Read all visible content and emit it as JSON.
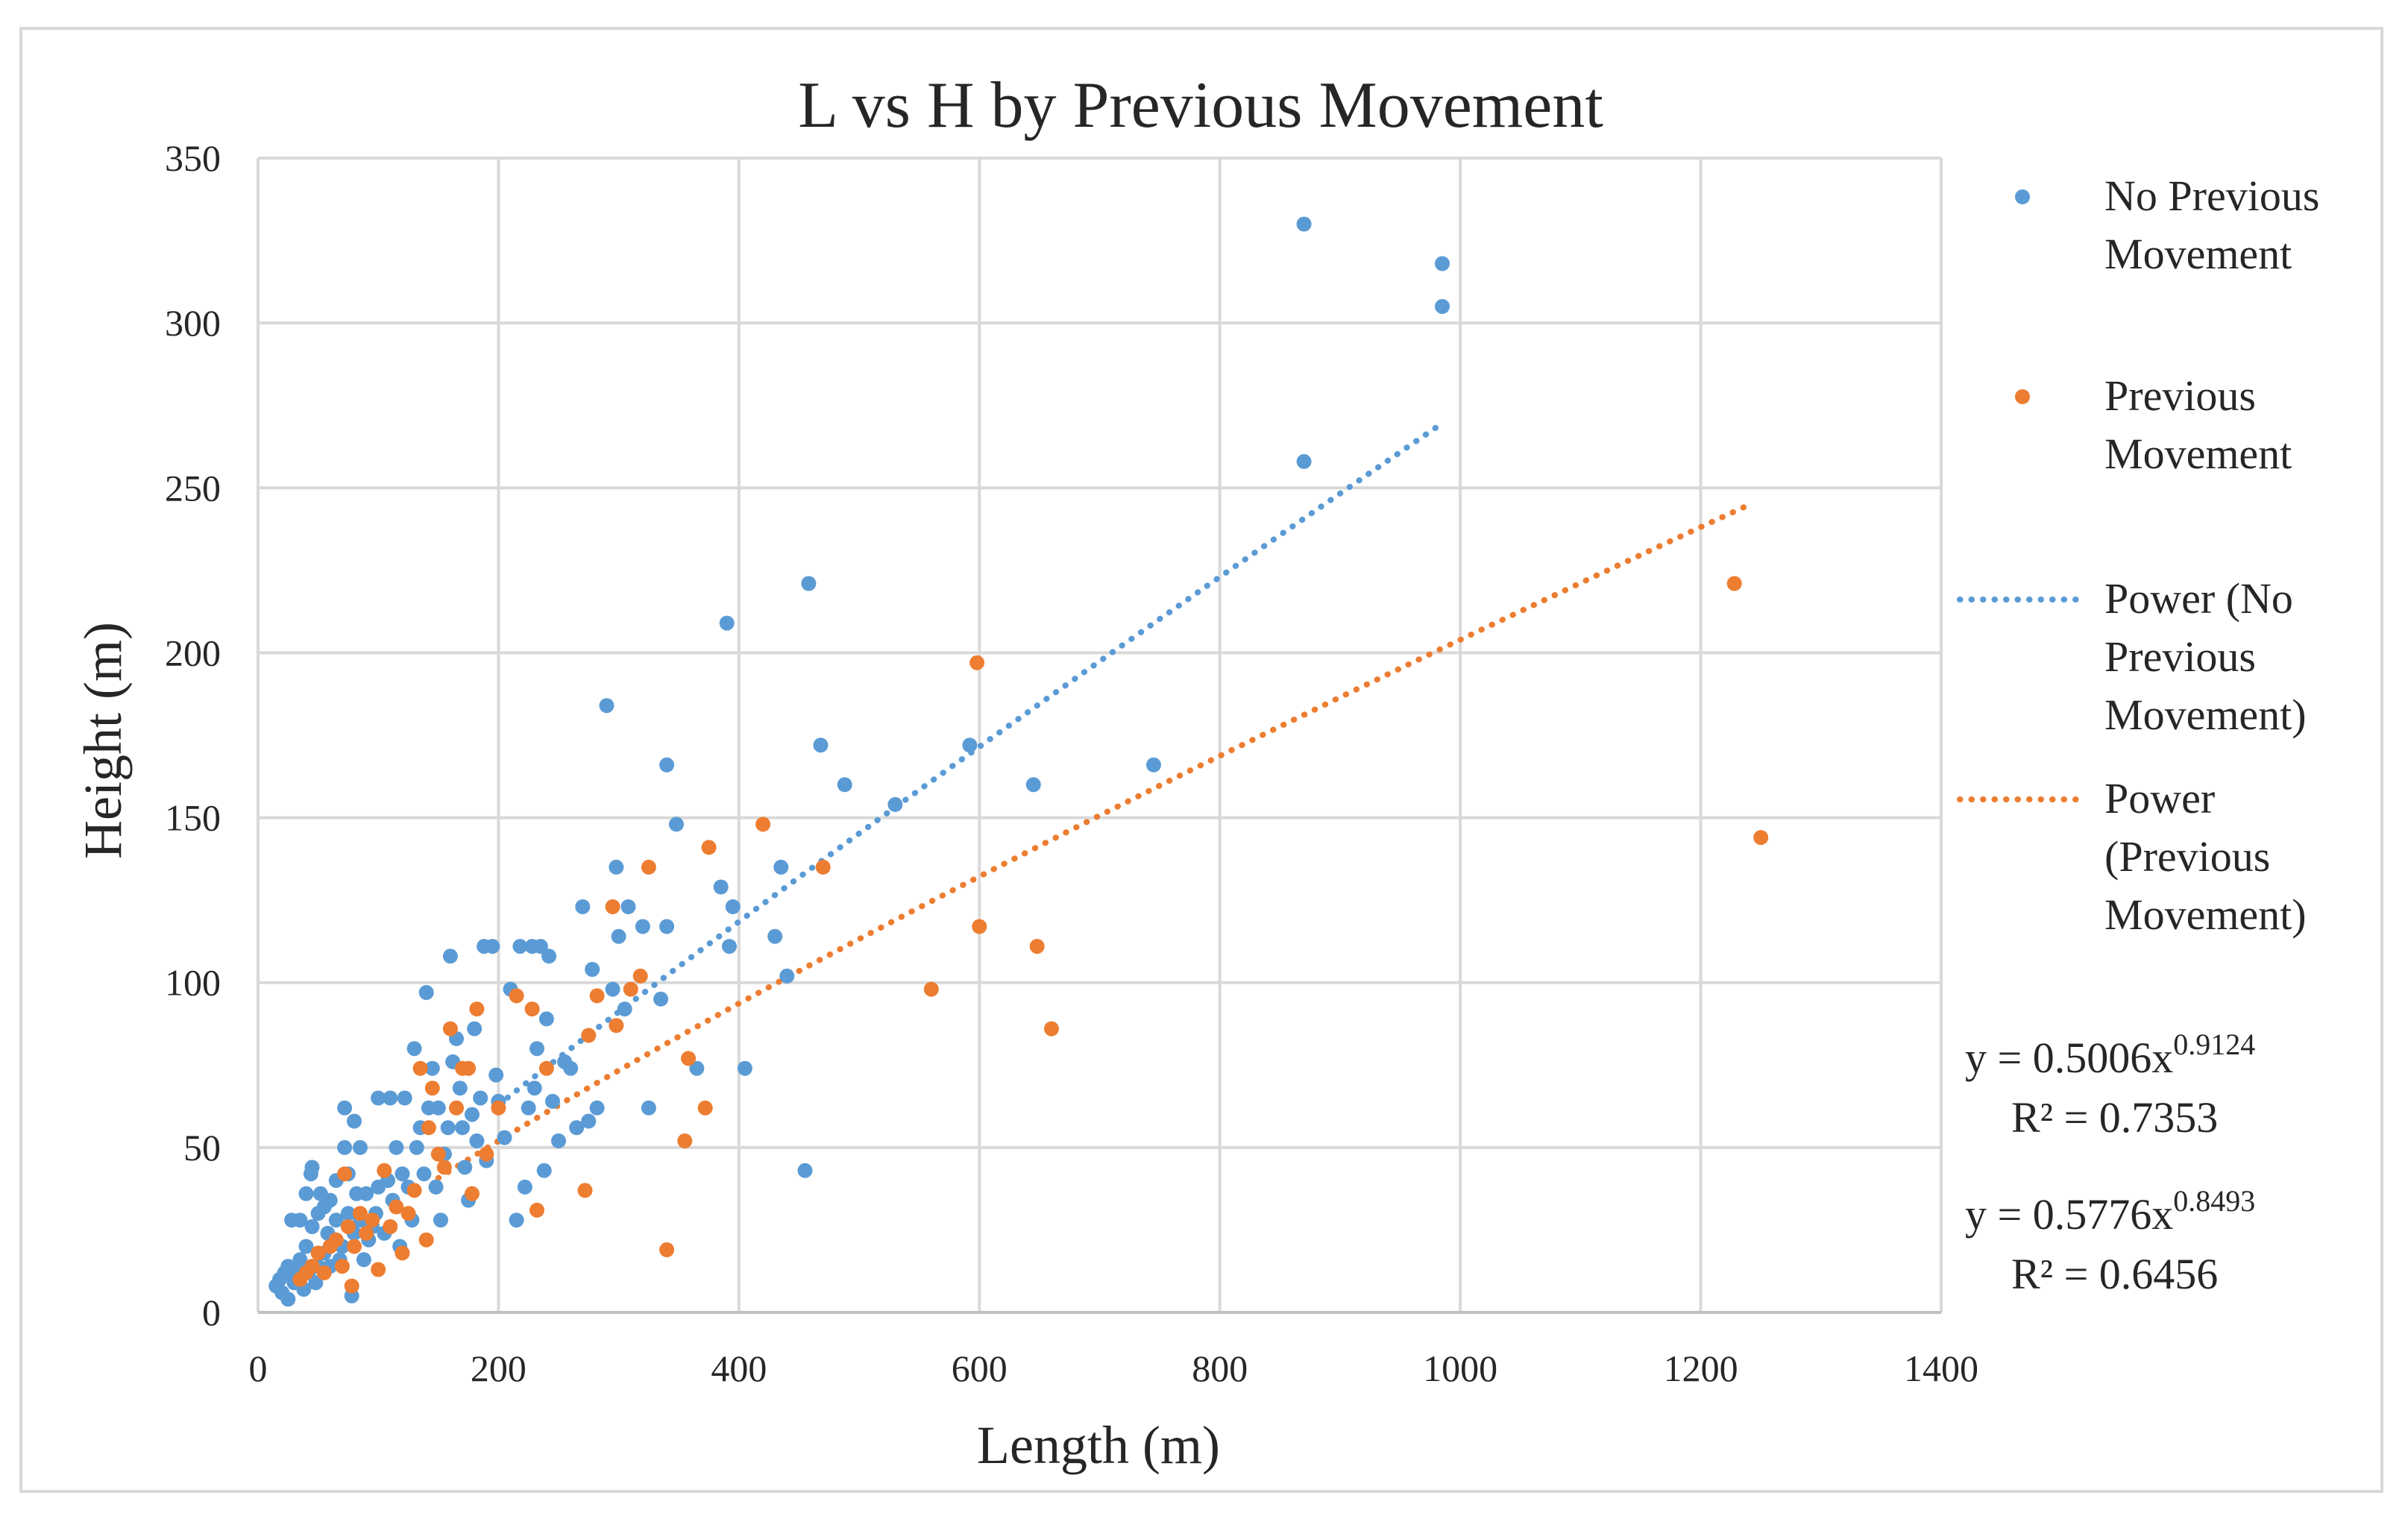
{
  "chart_data": {
    "type": "scatter",
    "title": "L vs H by Previous Movement",
    "xlabel": "Length (m)",
    "ylabel": "Height (m)",
    "xlim": [
      0,
      1400
    ],
    "ylim": [
      0,
      350
    ],
    "xticks": [
      0,
      200,
      400,
      600,
      800,
      1000,
      1200,
      1400
    ],
    "yticks": [
      0,
      50,
      100,
      150,
      200,
      250,
      300,
      350
    ],
    "grid": true,
    "legend_position": "right",
    "series": [
      {
        "name": "No Previous Movement",
        "color": "#5b9bd5",
        "points": [
          [
            15,
            8
          ],
          [
            18,
            10
          ],
          [
            20,
            6
          ],
          [
            22,
            12
          ],
          [
            25,
            14
          ],
          [
            25,
            4
          ],
          [
            28,
            28
          ],
          [
            30,
            9
          ],
          [
            32,
            12
          ],
          [
            35,
            28
          ],
          [
            35,
            16
          ],
          [
            38,
            7
          ],
          [
            40,
            20
          ],
          [
            40,
            36
          ],
          [
            42,
            12
          ],
          [
            44,
            42
          ],
          [
            45,
            44
          ],
          [
            45,
            26
          ],
          [
            48,
            9
          ],
          [
            50,
            30
          ],
          [
            50,
            14
          ],
          [
            52,
            36
          ],
          [
            55,
            18
          ],
          [
            55,
            32
          ],
          [
            58,
            24
          ],
          [
            60,
            34
          ],
          [
            60,
            14
          ],
          [
            62,
            22
          ],
          [
            65,
            40
          ],
          [
            65,
            28
          ],
          [
            68,
            16
          ],
          [
            70,
            20
          ],
          [
            72,
            62
          ],
          [
            72,
            50
          ],
          [
            75,
            30
          ],
          [
            75,
            42
          ],
          [
            78,
            5
          ],
          [
            80,
            24
          ],
          [
            80,
            58
          ],
          [
            82,
            36
          ],
          [
            85,
            50
          ],
          [
            85,
            28
          ],
          [
            88,
            16
          ],
          [
            90,
            36
          ],
          [
            92,
            22
          ],
          [
            95,
            26
          ],
          [
            98,
            30
          ],
          [
            100,
            65
          ],
          [
            100,
            38
          ],
          [
            105,
            24
          ],
          [
            108,
            40
          ],
          [
            110,
            65
          ],
          [
            112,
            34
          ],
          [
            115,
            50
          ],
          [
            118,
            20
          ],
          [
            120,
            42
          ],
          [
            122,
            65
          ],
          [
            125,
            38
          ],
          [
            128,
            28
          ],
          [
            130,
            80
          ],
          [
            132,
            50
          ],
          [
            135,
            56
          ],
          [
            138,
            42
          ],
          [
            140,
            97
          ],
          [
            142,
            62
          ],
          [
            145,
            74
          ],
          [
            148,
            38
          ],
          [
            150,
            62
          ],
          [
            152,
            28
          ],
          [
            155,
            48
          ],
          [
            158,
            56
          ],
          [
            160,
            108
          ],
          [
            162,
            76
          ],
          [
            165,
            83
          ],
          [
            168,
            68
          ],
          [
            170,
            56
          ],
          [
            172,
            44
          ],
          [
            175,
            34
          ],
          [
            178,
            60
          ],
          [
            180,
            86
          ],
          [
            182,
            52
          ],
          [
            185,
            65
          ],
          [
            188,
            111
          ],
          [
            190,
            46
          ],
          [
            195,
            111
          ],
          [
            198,
            72
          ],
          [
            200,
            64
          ],
          [
            205,
            53
          ],
          [
            210,
            98
          ],
          [
            215,
            28
          ],
          [
            218,
            111
          ],
          [
            222,
            38
          ],
          [
            225,
            62
          ],
          [
            228,
            111
          ],
          [
            230,
            68
          ],
          [
            232,
            80
          ],
          [
            235,
            111
          ],
          [
            238,
            43
          ],
          [
            240,
            89
          ],
          [
            242,
            108
          ],
          [
            245,
            64
          ],
          [
            250,
            52
          ],
          [
            255,
            76
          ],
          [
            260,
            74
          ],
          [
            265,
            56
          ],
          [
            270,
            123
          ],
          [
            275,
            58
          ],
          [
            278,
            104
          ],
          [
            282,
            62
          ],
          [
            290,
            184
          ],
          [
            295,
            98
          ],
          [
            298,
            135
          ],
          [
            300,
            114
          ],
          [
            305,
            92
          ],
          [
            308,
            123
          ],
          [
            320,
            117
          ],
          [
            325,
            62
          ],
          [
            335,
            95
          ],
          [
            340,
            166
          ],
          [
            340,
            117
          ],
          [
            348,
            148
          ],
          [
            365,
            74
          ],
          [
            385,
            129
          ],
          [
            390,
            209
          ],
          [
            392,
            111
          ],
          [
            395,
            123
          ],
          [
            430,
            114
          ],
          [
            435,
            135
          ],
          [
            440,
            102
          ],
          [
            405,
            74
          ],
          [
            455,
            43
          ],
          [
            458,
            221
          ],
          [
            468,
            172
          ],
          [
            488,
            160
          ],
          [
            530,
            154
          ],
          [
            592,
            172
          ],
          [
            645,
            160
          ],
          [
            745,
            166
          ],
          [
            870,
            258
          ],
          [
            870,
            330
          ],
          [
            985,
            318
          ],
          [
            985,
            305
          ]
        ]
      },
      {
        "name": "Previous Movement",
        "color": "#ed7d31",
        "points": [
          [
            35,
            10
          ],
          [
            40,
            12
          ],
          [
            45,
            14
          ],
          [
            50,
            18
          ],
          [
            55,
            12
          ],
          [
            60,
            20
          ],
          [
            65,
            22
          ],
          [
            70,
            14
          ],
          [
            72,
            42
          ],
          [
            75,
            26
          ],
          [
            78,
            8
          ],
          [
            80,
            20
          ],
          [
            85,
            30
          ],
          [
            90,
            24
          ],
          [
            95,
            28
          ],
          [
            100,
            13
          ],
          [
            105,
            43
          ],
          [
            110,
            26
          ],
          [
            115,
            32
          ],
          [
            120,
            18
          ],
          [
            125,
            30
          ],
          [
            130,
            37
          ],
          [
            135,
            74
          ],
          [
            140,
            22
          ],
          [
            142,
            56
          ],
          [
            145,
            68
          ],
          [
            150,
            48
          ],
          [
            155,
            44
          ],
          [
            160,
            86
          ],
          [
            165,
            62
          ],
          [
            170,
            74
          ],
          [
            175,
            74
          ],
          [
            178,
            36
          ],
          [
            182,
            92
          ],
          [
            190,
            48
          ],
          [
            200,
            62
          ],
          [
            215,
            96
          ],
          [
            228,
            92
          ],
          [
            232,
            31
          ],
          [
            240,
            74
          ],
          [
            272,
            37
          ],
          [
            275,
            84
          ],
          [
            282,
            96
          ],
          [
            295,
            123
          ],
          [
            298,
            87
          ],
          [
            310,
            98
          ],
          [
            318,
            102
          ],
          [
            325,
            135
          ],
          [
            340,
            19
          ],
          [
            355,
            52
          ],
          [
            358,
            77
          ],
          [
            372,
            62
          ],
          [
            375,
            141
          ],
          [
            420,
            148
          ],
          [
            470,
            135
          ],
          [
            560,
            98
          ],
          [
            598,
            197
          ],
          [
            600,
            117
          ],
          [
            648,
            111
          ],
          [
            660,
            86
          ],
          [
            1228,
            221
          ],
          [
            1250,
            144
          ]
        ]
      }
    ],
    "trendlines": [
      {
        "name": "Power (No Previous Movement)",
        "color": "#5b9bd5",
        "type": "power",
        "a": 0.5006,
        "b": 0.9124,
        "x_range": [
          200,
          985
        ],
        "equation": "y = 0.5006x",
        "exponent": "0.9124",
        "r2": "R² = 0.7353"
      },
      {
        "name": "Power (Previous Movement)",
        "color": "#ed7d31",
        "type": "power",
        "a": 0.5776,
        "b": 0.8493,
        "x_range": [
          150,
          1240
        ],
        "equation": "y = 0.5776x",
        "exponent": "0.8493",
        "r2": "R² = 0.6456"
      }
    ],
    "legend": {
      "items": [
        {
          "lines": [
            "No Previous",
            "Movement"
          ],
          "marker": "dot",
          "color": "#5b9bd5"
        },
        {
          "lines": [
            "Previous",
            "Movement"
          ],
          "marker": "dot",
          "color": "#ed7d31"
        },
        {
          "lines": [
            "Power (No",
            "Previous",
            "Movement)"
          ],
          "marker": "dotted-line",
          "color": "#5b9bd5"
        },
        {
          "lines": [
            "Power",
            "(Previous",
            "Movement)"
          ],
          "marker": "dotted-line",
          "color": "#ed7d31"
        }
      ]
    }
  }
}
